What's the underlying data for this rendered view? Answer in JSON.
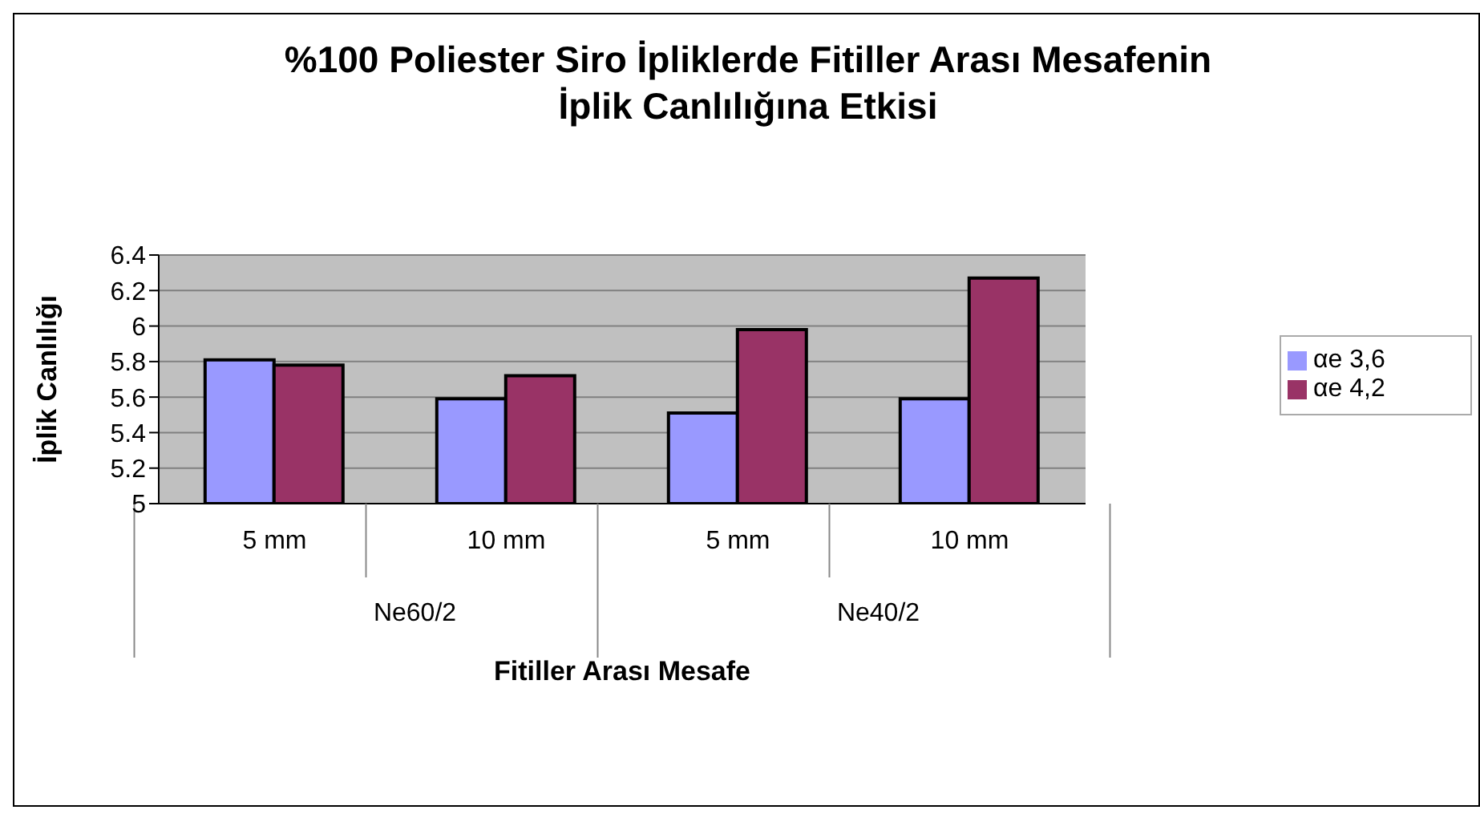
{
  "chart_data": {
    "type": "bar",
    "title": "%100 Poliester Siro İpliklerde Fitiller Arası Mesafenin\nİplik Canlılığına Etkisi",
    "xlabel": "Fitiller Arası Mesafe",
    "ylabel": "İplik Canlılığı",
    "categories": [
      "5 mm",
      "10 mm",
      "5 mm",
      "10 mm"
    ],
    "annotations": [
      "Ne60/2",
      "Ne40/2"
    ],
    "series": [
      {
        "name": "αe 3,6",
        "color": "#9999ff",
        "values": [
          5.81,
          5.59,
          5.51,
          5.59
        ]
      },
      {
        "name": "αe 4,2",
        "color": "#993366",
        "values": [
          5.78,
          5.72,
          5.98,
          6.27
        ]
      }
    ],
    "ylim": [
      5,
      6.4
    ],
    "yticks": [
      5,
      5.2,
      5.4,
      5.6,
      5.8,
      6,
      6.2,
      6.4
    ],
    "grid": "y",
    "legend": "right"
  }
}
